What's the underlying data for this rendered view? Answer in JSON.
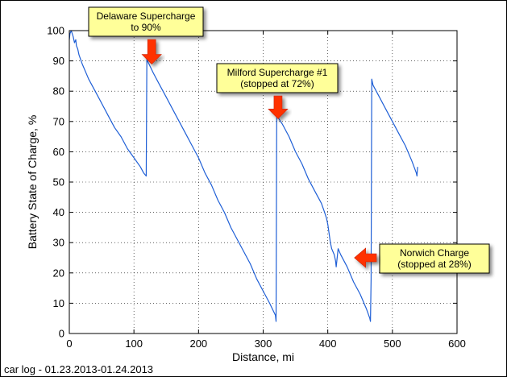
{
  "chart_data": {
    "type": "line",
    "xlabel": "Distance, mi",
    "ylabel": "Battery State of Charge, %",
    "xlim": [
      0,
      600
    ],
    "ylim": [
      0,
      100
    ],
    "xticks": [
      0,
      100,
      200,
      300,
      400,
      500,
      600
    ],
    "yticks": [
      0,
      10,
      20,
      30,
      40,
      50,
      60,
      70,
      80,
      90,
      100
    ],
    "grid": "dotted",
    "colors": {
      "line": "#1f5fd6",
      "callout_fill": "#ffff99",
      "arrow": "#ff3300"
    },
    "series": [
      {
        "x": [
          0,
          1,
          3,
          6,
          8,
          10,
          11,
          13,
          15,
          20,
          30,
          40,
          50,
          60,
          70,
          80,
          90,
          100,
          110,
          115,
          119,
          120,
          121,
          130,
          140,
          150,
          160,
          170,
          180,
          190,
          200,
          210,
          220,
          230,
          240,
          250,
          260,
          270,
          280,
          290,
          300,
          310,
          319,
          320,
          321,
          330,
          340,
          350,
          360,
          370,
          380,
          390,
          395,
          398,
          400,
          402,
          404,
          406,
          408,
          410,
          412,
          413,
          414,
          416,
          420,
          430,
          440,
          450,
          460,
          465,
          466,
          467,
          468,
          470,
          480,
          490,
          500,
          510,
          520,
          530,
          537,
          538,
          539
        ],
        "y": [
          97,
          99,
          100,
          98,
          96,
          97,
          95,
          94,
          92,
          89,
          84,
          80,
          76,
          72,
          68,
          65,
          61,
          58,
          55,
          53,
          52,
          91,
          90,
          86,
          82,
          78,
          74,
          70,
          66,
          62,
          58,
          53,
          49,
          44,
          40,
          35,
          31,
          27,
          23,
          18,
          14,
          10,
          6,
          4,
          72,
          69,
          65,
          60,
          56,
          51,
          47,
          43,
          40,
          38,
          36,
          33,
          30,
          28,
          27,
          26,
          24,
          22,
          24,
          28,
          26,
          22,
          17,
          13,
          8,
          5,
          4,
          18,
          84,
          82,
          78,
          74,
          70,
          66,
          62,
          57,
          53,
          52,
          55
        ]
      }
    ],
    "annotations": [
      {
        "lines": [
          "Delaware Supercharge",
          "to 90%"
        ],
        "x": 120,
        "y": 90
      },
      {
        "lines": [
          "Milford Supercharge #1",
          "(stopped at 72%)"
        ],
        "x": 323,
        "y": 72
      },
      {
        "lines": [
          "Norwich Charge",
          "(stopped at 28%)"
        ],
        "x": 410,
        "y": 25
      }
    ]
  },
  "footer": "car log - 01.23.2013-01.24.2013"
}
